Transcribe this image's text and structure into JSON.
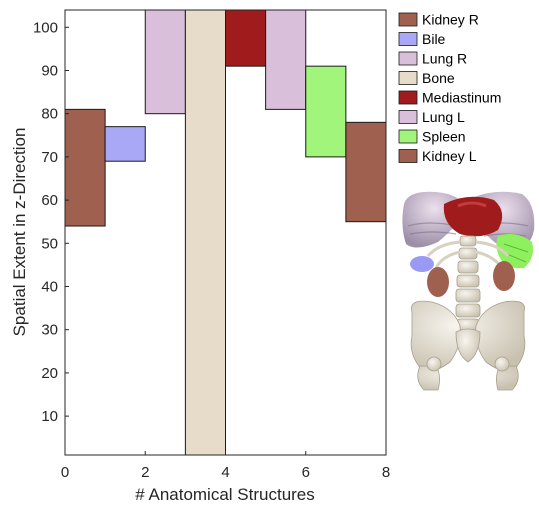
{
  "chart_data": {
    "type": "bar",
    "subtype": "floating-range",
    "title": "",
    "xlabel": "# Anatomical Structures",
    "ylabel": "Spatial Extent in z-Direction",
    "xlim": [
      0,
      8
    ],
    "ylim": [
      1,
      104
    ],
    "xticks": [
      "0",
      "2",
      "4",
      "6",
      "8"
    ],
    "yticks": [
      "10",
      "20",
      "30",
      "40",
      "50",
      "60",
      "70",
      "80",
      "90",
      "100"
    ],
    "grid": false,
    "legend_position": "right",
    "series": [
      {
        "name": "Kidney R",
        "x": [
          0,
          1
        ],
        "range": [
          54,
          81
        ],
        "color": "#a0604f"
      },
      {
        "name": "Bile",
        "x": [
          1,
          2
        ],
        "range": [
          69,
          77
        ],
        "color": "#a8a8f7"
      },
      {
        "name": "Lung R",
        "x": [
          2,
          3
        ],
        "range": [
          80,
          104
        ],
        "color": "#d9bfd9"
      },
      {
        "name": "Bone",
        "x": [
          3,
          4
        ],
        "range": [
          1,
          104
        ],
        "color": "#e6dcc9"
      },
      {
        "name": "Mediastinum",
        "x": [
          4,
          5
        ],
        "range": [
          91,
          104
        ],
        "color": "#a01c1c"
      },
      {
        "name": "Lung L",
        "x": [
          5,
          6
        ],
        "range": [
          81,
          104
        ],
        "color": "#d9bfd9"
      },
      {
        "name": "Spleen",
        "x": [
          6,
          7
        ],
        "range": [
          70,
          91
        ],
        "color": "#a0f57a"
      },
      {
        "name": "Kidney L",
        "x": [
          7,
          8
        ],
        "range": [
          55,
          78
        ],
        "color": "#a0604f"
      }
    ]
  },
  "inset": {
    "name": "anatomy-rendering",
    "colors": {
      "bone": "#ece8de",
      "bone_shadow": "#bdb6a6",
      "lung": "#d9c9dc",
      "lung_shadow": "#8f8398",
      "mediastinum": "#a01c1c",
      "spleen": "#8ef05e",
      "kidney": "#a0604f",
      "bile": "#9a9af5"
    }
  }
}
